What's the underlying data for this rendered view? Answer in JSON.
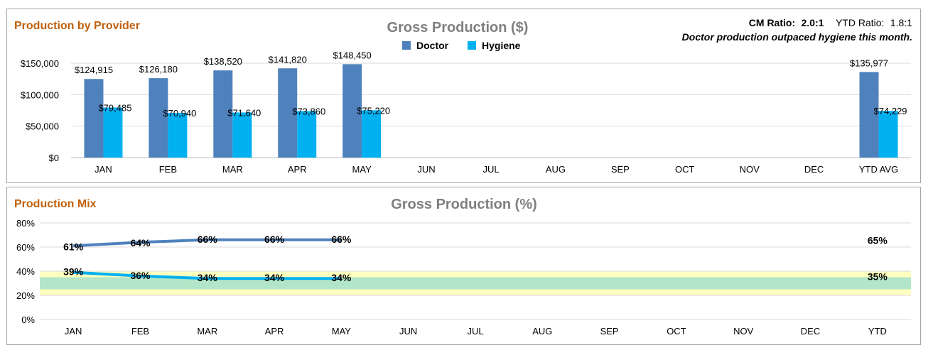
{
  "top_panel": {
    "title": "Production by Provider",
    "chart_title": "Gross Production ($)",
    "cm_ratio_label": "CM Ratio:",
    "cm_ratio_value": "2.0:1",
    "ytd_ratio_label": "YTD Ratio:",
    "ytd_ratio_value": "1.8:1",
    "note": "Doctor production outpaced hygiene this month."
  },
  "bottom_panel": {
    "title": "Production Mix",
    "chart_title": "Gross Production (%)"
  },
  "colors": {
    "doctor": "#4f81bd",
    "hygiene": "#00b0f0",
    "band_yellow": "#ffffc0",
    "band_green": "#b3e6c8",
    "grid": "#d9d9d9",
    "panel_title": "#c0600d"
  },
  "chart_data": [
    {
      "type": "bar",
      "title": "Gross Production ($)",
      "categories": [
        "JAN",
        "FEB",
        "MAR",
        "APR",
        "MAY",
        "JUN",
        "JUL",
        "AUG",
        "SEP",
        "OCT",
        "NOV",
        "DEC",
        "YTD AVG"
      ],
      "series": [
        {
          "name": "Doctor",
          "values": [
            124915,
            126180,
            138520,
            141820,
            148450,
            null,
            null,
            null,
            null,
            null,
            null,
            null,
            135977
          ],
          "labels": [
            "$124,915",
            "$126,180",
            "$138,520",
            "$141,820",
            "$148,450",
            "",
            "",
            "",
            "",
            "",
            "",
            "",
            "$135,977"
          ]
        },
        {
          "name": "Hygiene",
          "values": [
            79485,
            70940,
            71640,
            73860,
            75220,
            null,
            null,
            null,
            null,
            null,
            null,
            null,
            74229
          ],
          "labels": [
            "$79,485",
            "$70,940",
            "$71,640",
            "$73,860",
            "$75,220",
            "",
            "",
            "",
            "",
            "",
            "",
            "",
            "$74,229"
          ]
        }
      ],
      "ylim": [
        0,
        150000
      ],
      "yticks": [
        0,
        50000,
        100000,
        150000
      ],
      "ytick_labels": [
        "$0",
        "$50,000",
        "$100,000",
        "$150,000"
      ],
      "legend": "top-center",
      "grid": true
    },
    {
      "type": "line",
      "title": "Gross Production (%)",
      "categories": [
        "JAN",
        "FEB",
        "MAR",
        "APR",
        "MAY",
        "JUN",
        "JUL",
        "AUG",
        "SEP",
        "OCT",
        "NOV",
        "DEC",
        "YTD"
      ],
      "series": [
        {
          "name": "Doctor",
          "values": [
            61,
            64,
            66,
            66,
            66,
            null,
            null,
            null,
            null,
            null,
            null,
            null,
            65
          ],
          "labels": [
            "61%",
            "64%",
            "66%",
            "66%",
            "66%",
            "",
            "",
            "",
            "",
            "",
            "",
            "",
            "65%"
          ]
        },
        {
          "name": "Hygiene",
          "values": [
            39,
            36,
            34,
            34,
            34,
            null,
            null,
            null,
            null,
            null,
            null,
            null,
            35
          ],
          "labels": [
            "39%",
            "36%",
            "34%",
            "34%",
            "34%",
            "",
            "",
            "",
            "",
            "",
            "",
            "",
            "35%"
          ]
        }
      ],
      "ylim": [
        0,
        80
      ],
      "yticks": [
        0,
        20,
        40,
        60,
        80
      ],
      "ytick_labels": [
        "0%",
        "20%",
        "40%",
        "60%",
        "80%"
      ],
      "bands": [
        {
          "from": 20,
          "to": 40,
          "color": "yellow"
        },
        {
          "from": 25,
          "to": 35,
          "color": "green"
        }
      ],
      "grid": true
    }
  ]
}
